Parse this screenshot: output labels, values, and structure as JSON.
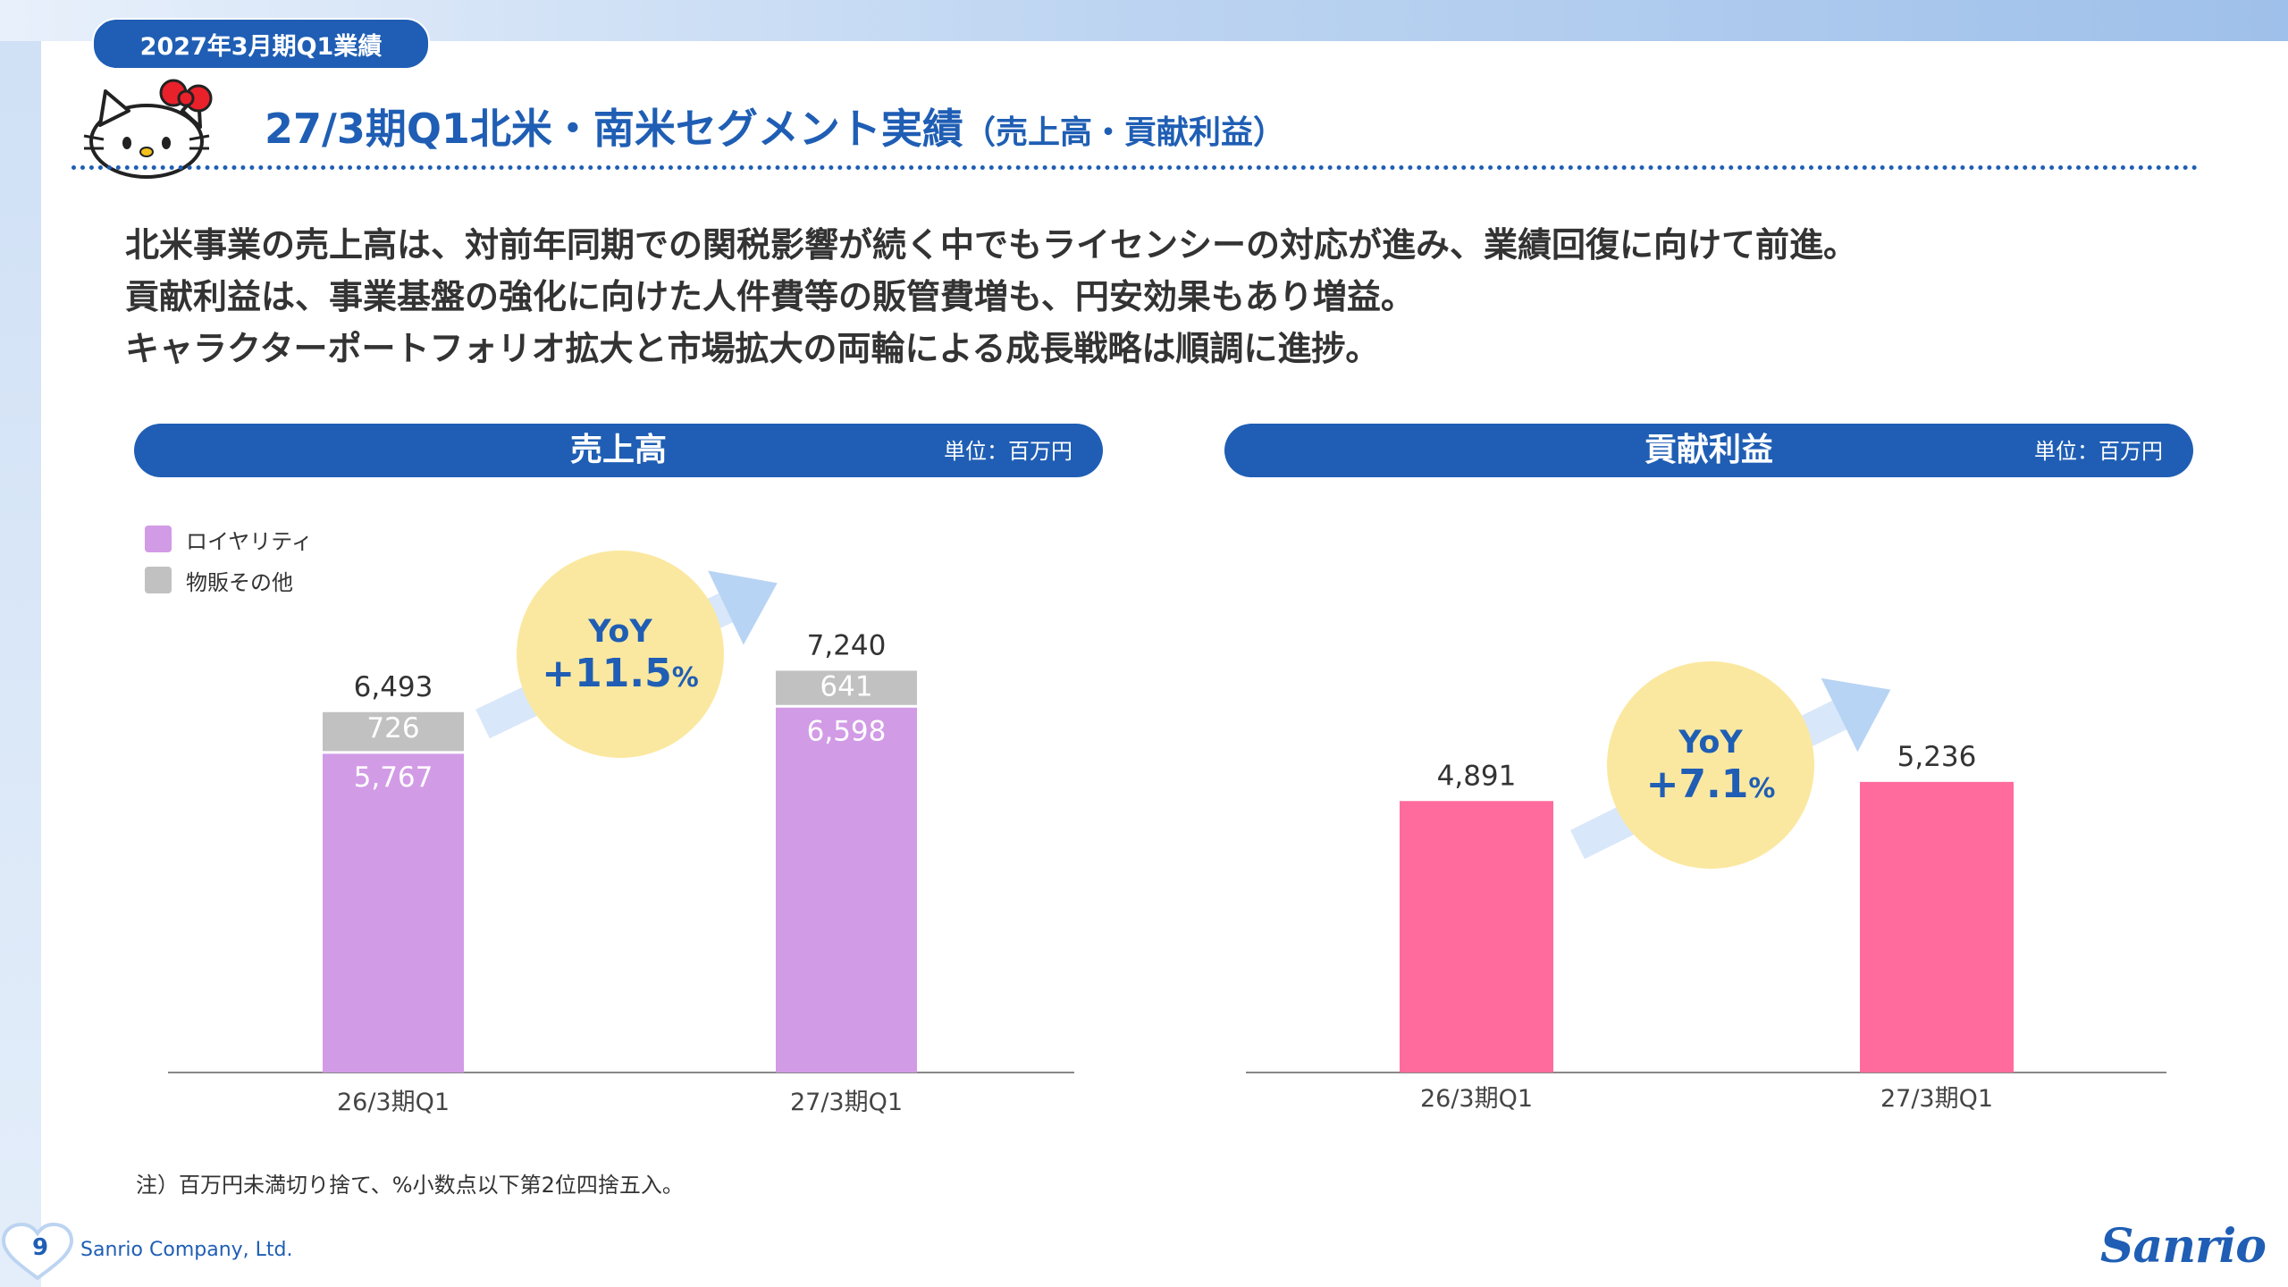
{
  "header": {
    "period_label": "2027年3月期Q1業績",
    "title": "27/3期Q1北米・南米セグメント実績",
    "title_sub": "（売上高・貢献利益）"
  },
  "summary": [
    "北米事業の売上高は、対前年同期での関税影響が続く中でもライセンシーの対応が進み、業績回復に向けて前進。",
    "貢献利益は、事業基盤の強化に向けた人件費等の販管費増も、円安効果もあり増益。",
    "キャラクターポートフォリオ拡大と市場拡大の両輪による成長戦略は順調に進捗。"
  ],
  "colors": {
    "brand_blue": "#1f5eb4",
    "royalty": "#d29be6",
    "merch_other": "#c1c1c1",
    "contribution": "#ff6b9d",
    "yoy_bubble": "#fbe8a0",
    "arrow": "#b8d4f4"
  },
  "chart_data": [
    {
      "type": "bar",
      "stacked": true,
      "title": "売上高",
      "unit": "単位：百万円",
      "categories": [
        "26/3期Q1",
        "27/3期Q1"
      ],
      "series": [
        {
          "name": "ロイヤリティ",
          "values": [
            5767,
            6598
          ]
        },
        {
          "name": "物販その他",
          "values": [
            726,
            641
          ]
        }
      ],
      "value_labels": [
        [
          "5,767",
          "6,598"
        ],
        [
          "726",
          "641"
        ]
      ],
      "totals": [
        6493,
        7240
      ],
      "total_labels": [
        "6,493",
        "7,240"
      ],
      "yoy": {
        "label": "YoY",
        "value": "+11.5",
        "suffix": "%"
      },
      "legend_position": "top-left",
      "grid": false
    },
    {
      "type": "bar",
      "title": "貢献利益",
      "unit": "単位：百万円",
      "categories": [
        "26/3期Q1",
        "27/3期Q1"
      ],
      "series": [
        {
          "values": [
            4891,
            5236
          ]
        }
      ],
      "value_labels": [
        [
          "4,891",
          "5,236"
        ]
      ],
      "yoy": {
        "label": "YoY",
        "value": "+7.1",
        "suffix": "%"
      },
      "grid": false
    }
  ],
  "footnote": "注）百万円未満切り捨て、%小数点以下第2位四捨五入。",
  "footer": {
    "page_number": "9",
    "company": "Sanrio Company, Ltd.",
    "logo": "Sanrio"
  }
}
